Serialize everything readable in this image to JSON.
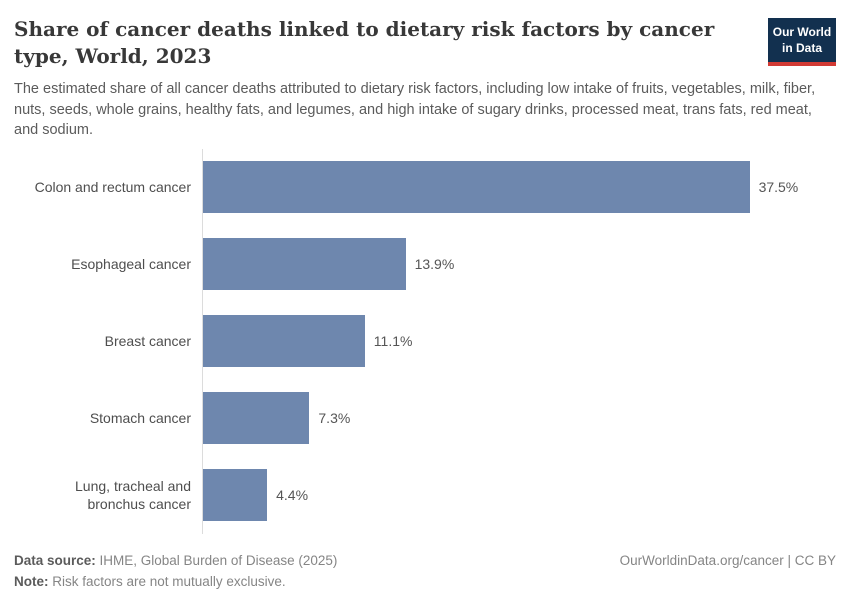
{
  "header": {
    "title": "Share of cancer deaths linked to dietary risk factors by cancer type, World, 2023",
    "subtitle": "The estimated share of all cancer deaths attributed to dietary risk factors, including low intake of fruits, vegetables, milk, fiber, nuts, seeds, whole grains, healthy fats, and legumes, and high intake of sugary drinks, processed meat, trans fats, red meat, and sodium.",
    "logo": {
      "line1": "Our World",
      "line2": "in Data"
    }
  },
  "chart_data": {
    "type": "bar",
    "orientation": "horizontal",
    "title": "Share of cancer deaths linked to dietary risk factors by cancer type, World, 2023",
    "categories": [
      "Colon and rectum cancer",
      "Esophageal cancer",
      "Breast cancer",
      "Stomach cancer",
      "Lung, tracheal and bronchus cancer"
    ],
    "values": [
      37.5,
      13.9,
      11.1,
      7.3,
      4.4
    ],
    "value_labels": [
      "37.5%",
      "13.9%",
      "11.1%",
      "7.3%",
      "4.4%"
    ],
    "unit": "%",
    "xlim": [
      0,
      40
    ],
    "grid": false,
    "legend": "none",
    "bar_color": "#6e87ae",
    "axis_line_color": "#dcdcdc"
  },
  "footer": {
    "data_source_label": "Data source:",
    "data_source": " IHME, Global Burden of Disease (2025)",
    "note_label": "Note:",
    "note": " Risk factors are not mutually exclusive.",
    "link": "OurWorldinData.org/cancer | CC BY"
  },
  "colors": {
    "bar": "#6e87ae",
    "logo_background": "#12304f",
    "logo_stripe": "#d23a34",
    "title_text": "#383838",
    "body_text": "#5b5b5b"
  }
}
